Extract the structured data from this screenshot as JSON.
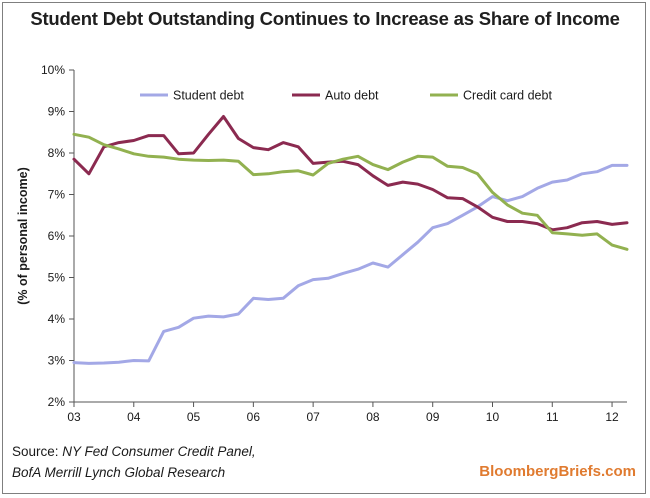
{
  "chart_data": {
    "type": "line",
    "title": "Student Debt Outstanding Continues to Increase as Share of Income",
    "ylabel": "(% of personal income)",
    "xlabel": "",
    "xlim": [
      2003.0,
      2012.25
    ],
    "ylim": [
      2,
      10
    ],
    "x_ticks": [
      2003,
      2004,
      2005,
      2006,
      2007,
      2008,
      2009,
      2010,
      2011,
      2012
    ],
    "x_tick_labels": [
      "03",
      "04",
      "05",
      "06",
      "07",
      "08",
      "09",
      "10",
      "11",
      "12"
    ],
    "y_ticks": [
      2,
      3,
      4,
      5,
      6,
      7,
      8,
      9,
      10
    ],
    "y_tick_labels": [
      "2%",
      "3%",
      "4%",
      "5%",
      "6%",
      "7%",
      "8%",
      "9%",
      "10%"
    ],
    "grid": false,
    "legend_position": "top",
    "x": [
      2003.0,
      2003.25,
      2003.5,
      2003.75,
      2004.0,
      2004.25,
      2004.5,
      2004.75,
      2005.0,
      2005.25,
      2005.5,
      2005.75,
      2006.0,
      2006.25,
      2006.5,
      2006.75,
      2007.0,
      2007.25,
      2007.5,
      2007.75,
      2008.0,
      2008.25,
      2008.5,
      2008.75,
      2009.0,
      2009.25,
      2009.5,
      2009.75,
      2010.0,
      2010.25,
      2010.5,
      2010.75,
      2011.0,
      2011.25,
      2011.5,
      2011.75,
      2012.0,
      2012.25
    ],
    "series": [
      {
        "name": "Student debt",
        "color": "#a3a8e6",
        "values": [
          2.95,
          2.93,
          2.94,
          2.96,
          3.0,
          2.99,
          3.7,
          3.8,
          4.02,
          4.07,
          4.05,
          4.12,
          4.5,
          4.47,
          4.5,
          4.8,
          4.95,
          4.98,
          5.1,
          5.2,
          5.35,
          5.25,
          5.55,
          5.85,
          6.2,
          6.3,
          6.5,
          6.7,
          6.95,
          6.85,
          6.95,
          7.15,
          7.3,
          7.35,
          7.5,
          7.55,
          7.7,
          7.7
        ]
      },
      {
        "name": "Auto debt",
        "color": "#8b2a50",
        "values": [
          7.85,
          7.5,
          8.15,
          8.25,
          8.3,
          8.42,
          8.42,
          7.98,
          8.0,
          8.45,
          8.88,
          8.35,
          8.13,
          8.08,
          8.25,
          8.15,
          7.75,
          7.78,
          7.8,
          7.72,
          7.45,
          7.22,
          7.3,
          7.25,
          7.12,
          6.92,
          6.9,
          6.7,
          6.45,
          6.35,
          6.35,
          6.3,
          6.15,
          6.2,
          6.32,
          6.35,
          6.28,
          6.32
        ]
      },
      {
        "name": "Credit card debt",
        "color": "#92b150",
        "values": [
          8.45,
          8.38,
          8.2,
          8.1,
          7.98,
          7.92,
          7.9,
          7.85,
          7.83,
          7.82,
          7.83,
          7.8,
          7.48,
          7.5,
          7.55,
          7.57,
          7.47,
          7.75,
          7.85,
          7.92,
          7.72,
          7.6,
          7.78,
          7.92,
          7.9,
          7.68,
          7.65,
          7.5,
          7.05,
          6.75,
          6.55,
          6.5,
          6.08,
          6.05,
          6.02,
          6.05,
          5.78,
          5.68
        ]
      }
    ]
  },
  "source": {
    "prefix": "Source: ",
    "line1": "NY Fed Consumer Credit Panel,",
    "line2": "BofA Merrill Lynch Global Research"
  },
  "brand": "BloombergBriefs.com"
}
